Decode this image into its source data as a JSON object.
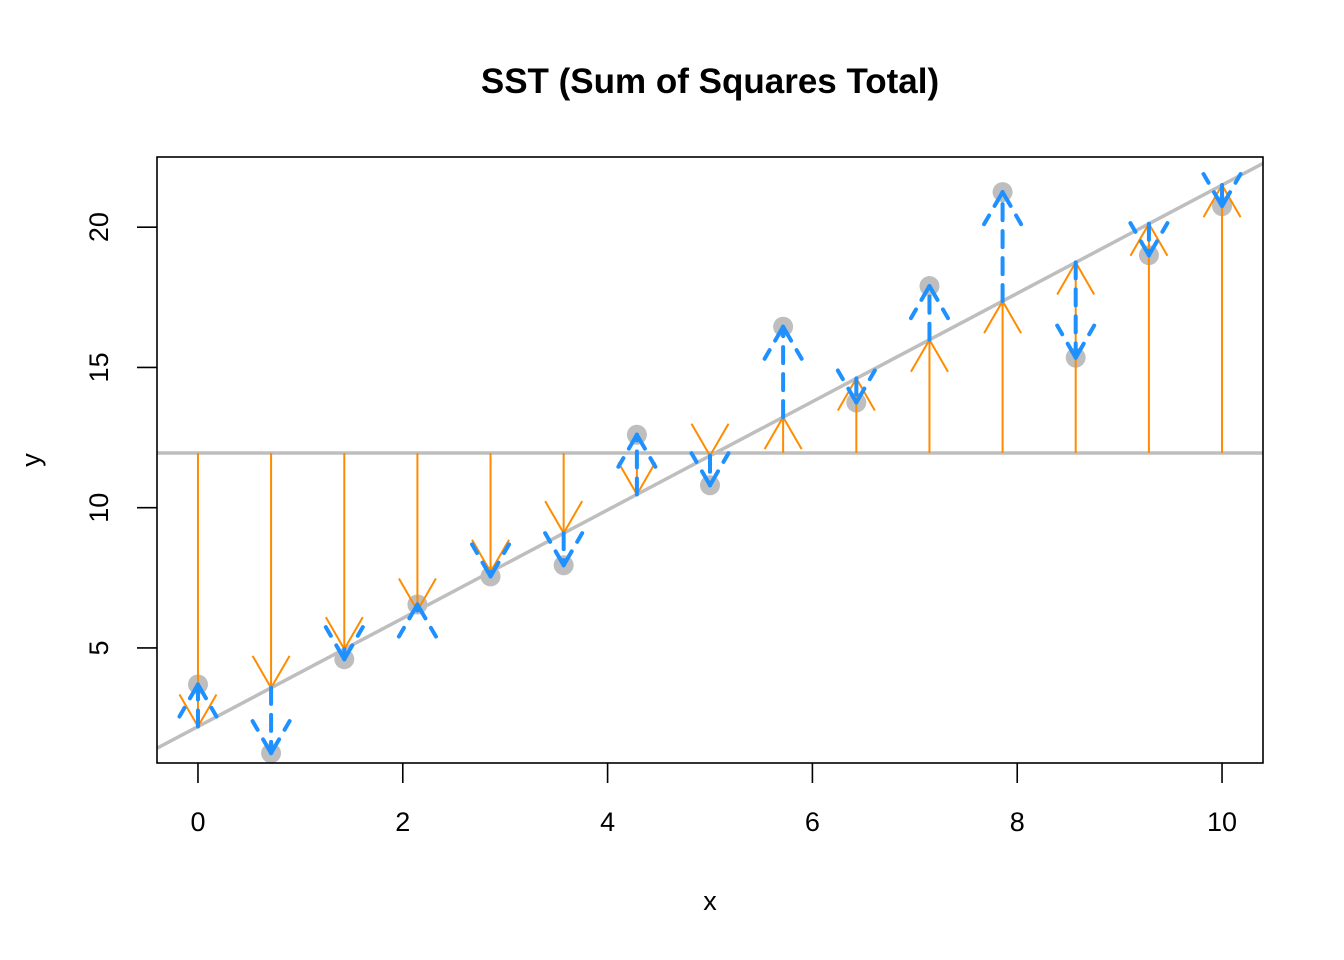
{
  "chart_data": {
    "type": "scatter",
    "title": "SST (Sum of Squares Total)",
    "xlabel": "x",
    "ylabel": "y",
    "xlim": [
      -0.4,
      10.4
    ],
    "ylim": [
      0.9,
      22.5
    ],
    "x_ticks": [
      0,
      2,
      4,
      6,
      8,
      10
    ],
    "y_ticks": [
      5,
      10,
      15,
      20
    ],
    "grid": false,
    "mean_y": 11.95,
    "regression_line": {
      "intercept": 2.2,
      "slope": 1.93
    },
    "x": [
      0,
      0.714,
      1.429,
      2.143,
      2.857,
      3.571,
      4.286,
      5.0,
      5.714,
      6.429,
      7.143,
      7.857,
      8.571,
      9.286,
      10.0
    ],
    "y": [
      3.7,
      1.25,
      4.6,
      6.55,
      7.55,
      7.95,
      12.6,
      10.8,
      16.45,
      13.75,
      17.9,
      21.25,
      15.35,
      19.0,
      20.75
    ],
    "colors": {
      "points": "#bebebe",
      "mean_line": "#bebebe",
      "regression_line": "#bebebe",
      "explained_arrows": "#ff8c00",
      "residual_arrows": "#1e90ff"
    }
  }
}
